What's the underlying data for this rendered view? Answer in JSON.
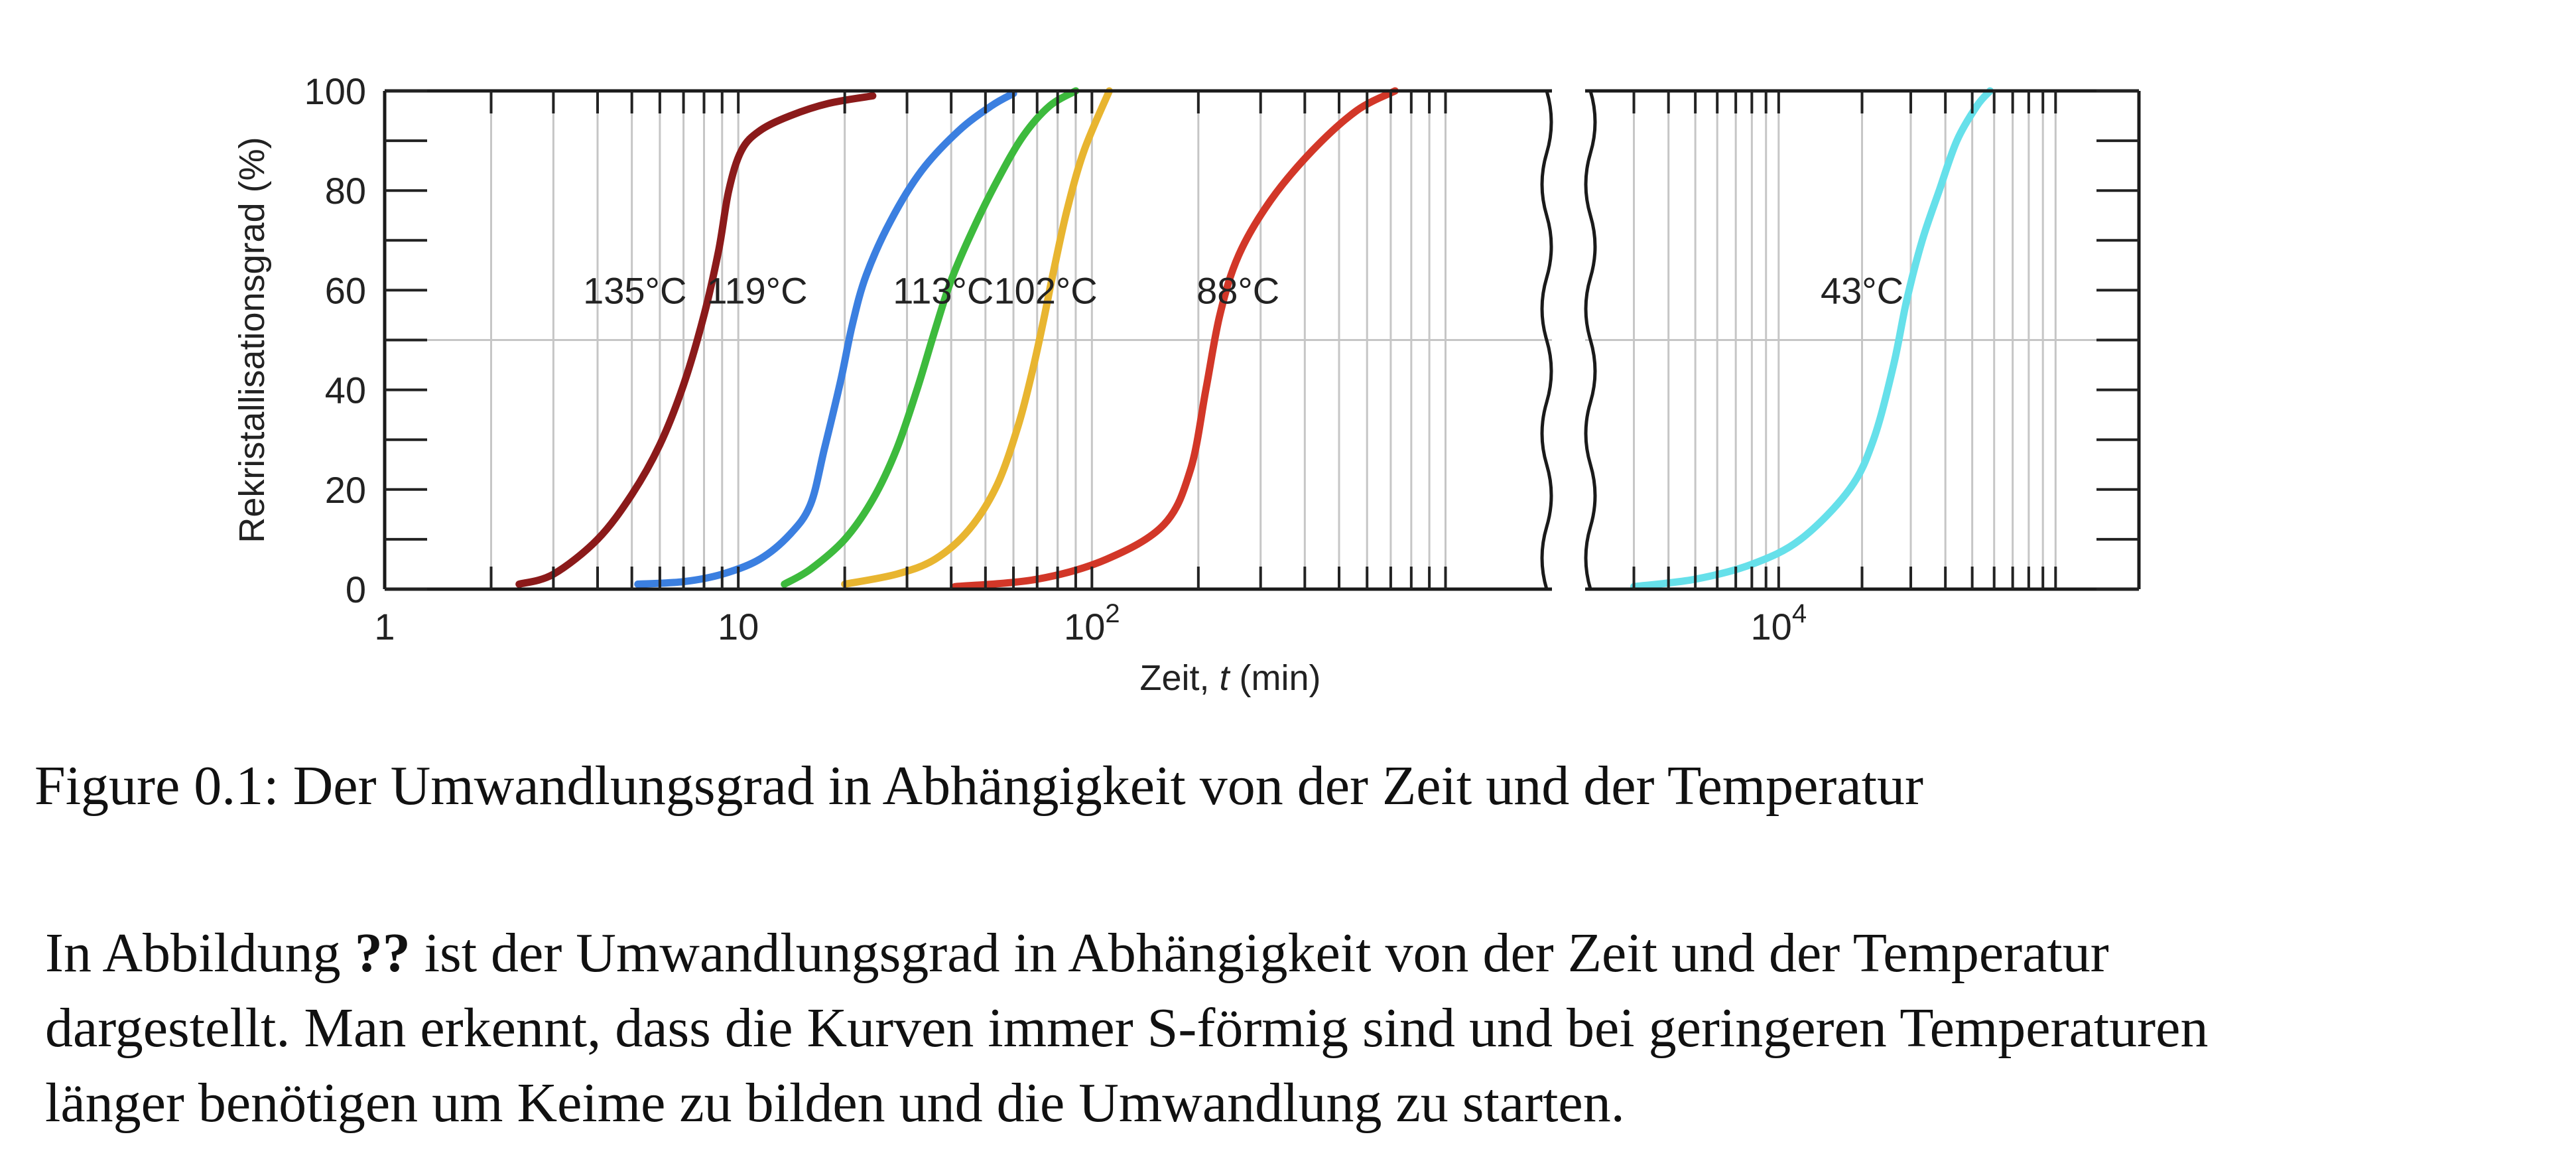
{
  "chart_data": {
    "type": "line",
    "ylabel": "Rekristallisationsgrad (%)",
    "xlabel": "Zeit, t (min)",
    "x_scale": "log",
    "ylim": [
      0,
      100
    ],
    "left_panel_xlim": [
      1,
      2000
    ],
    "right_panel_xlim": [
      2000,
      200000
    ],
    "y_ticks": [
      "0",
      "20",
      "40",
      "60",
      "80",
      "100"
    ],
    "x_ticks": [
      {
        "value": 1,
        "label": "1",
        "panel": "left"
      },
      {
        "value": 10,
        "label": "10",
        "panel": "left"
      },
      {
        "value": 100,
        "label": "10",
        "sup": "2",
        "panel": "left"
      },
      {
        "value": 10000,
        "label": "10",
        "sup": "4",
        "panel": "right"
      }
    ],
    "grid": true,
    "reference_line_y": 50,
    "series": [
      {
        "name": "135°C",
        "color": "#8b1a1a",
        "panel": "left",
        "label_at": {
          "x": 5.1,
          "y": 60
        },
        "points": [
          [
            2.4,
            1
          ],
          [
            3.0,
            3
          ],
          [
            4.0,
            10
          ],
          [
            5.0,
            19
          ],
          [
            6.0,
            29
          ],
          [
            7.0,
            41
          ],
          [
            8.0,
            55
          ],
          [
            8.8,
            68
          ],
          [
            9.4,
            80
          ],
          [
            10.2,
            88
          ],
          [
            11.5,
            92
          ],
          [
            14,
            95
          ],
          [
            18,
            97.5
          ],
          [
            24,
            99
          ]
        ]
      },
      {
        "name": "119°C",
        "color": "#3b7fe0",
        "panel": "left",
        "label_at": {
          "x": 11.3,
          "y": 60
        },
        "points": [
          [
            5.2,
            1
          ],
          [
            7.0,
            1.5
          ],
          [
            9.0,
            3
          ],
          [
            11.5,
            6
          ],
          [
            14,
            11
          ],
          [
            16,
            17
          ],
          [
            17.5,
            28
          ],
          [
            19.5,
            42
          ],
          [
            21,
            53
          ],
          [
            23,
            63
          ],
          [
            27,
            74
          ],
          [
            33,
            84
          ],
          [
            42,
            92
          ],
          [
            52,
            97
          ],
          [
            60,
            99.5
          ]
        ]
      },
      {
        "name": "113°C",
        "color": "#3dba3d",
        "panel": "left",
        "label_at": {
          "x": 38,
          "y": 60
        },
        "points": [
          [
            13.5,
            1
          ],
          [
            16,
            4
          ],
          [
            20,
            10
          ],
          [
            24,
            18
          ],
          [
            28,
            28
          ],
          [
            32,
            40
          ],
          [
            36,
            52
          ],
          [
            40,
            62
          ],
          [
            46,
            72
          ],
          [
            54,
            82
          ],
          [
            64,
            91
          ],
          [
            76,
            97
          ],
          [
            90,
            100
          ]
        ]
      },
      {
        "name": "102°C",
        "color": "#e8b530",
        "panel": "left",
        "label_at": {
          "x": 74,
          "y": 60
        },
        "points": [
          [
            20,
            1
          ],
          [
            28,
            3
          ],
          [
            36,
            6
          ],
          [
            45,
            12
          ],
          [
            54,
            21
          ],
          [
            62,
            33
          ],
          [
            68,
            44
          ],
          [
            73,
            54
          ],
          [
            78,
            64
          ],
          [
            85,
            76
          ],
          [
            95,
            88
          ],
          [
            112,
            100
          ]
        ]
      },
      {
        "name": "88°C",
        "color": "#d23728",
        "panel": "left",
        "label_at": {
          "x": 259,
          "y": 60
        },
        "points": [
          [
            41,
            0.5
          ],
          [
            70,
            2
          ],
          [
            110,
            6
          ],
          [
            160,
            13
          ],
          [
            190,
            24
          ],
          [
            210,
            40
          ],
          [
            230,
            55
          ],
          [
            260,
            67
          ],
          [
            320,
            78
          ],
          [
            420,
            88
          ],
          [
            560,
            96
          ],
          [
            720,
            100
          ]
        ]
      },
      {
        "name": "43°C",
        "color": "#66e0ea",
        "panel": "right",
        "label_at": {
          "x": 20000,
          "y": 60
        },
        "points": [
          [
            3000,
            0.5
          ],
          [
            5000,
            2
          ],
          [
            8000,
            5
          ],
          [
            12000,
            10
          ],
          [
            18000,
            20
          ],
          [
            22000,
            30
          ],
          [
            26000,
            45
          ],
          [
            29000,
            58
          ],
          [
            33000,
            70
          ],
          [
            38000,
            80
          ],
          [
            44000,
            90
          ],
          [
            52000,
            97
          ],
          [
            58000,
            100
          ]
        ]
      }
    ]
  },
  "caption": "Figure 0.1: Der Umwandlungsgrad in Abhängigkeit von der Zeit und der Temperatur",
  "paragraph": {
    "line1_before": "In Abbildung ",
    "ref": "??",
    "line1_after": " ist der Umwandlungsgrad in Abhängigkeit von der Zeit und der Temperatur",
    "line2": "dargestellt.  Man erkennt, dass die Kurven immer S-förmig sind und bei geringeren Temperaturen",
    "line3": "länger benötigen um Keime zu bilden und die Umwandlung zu starten."
  }
}
